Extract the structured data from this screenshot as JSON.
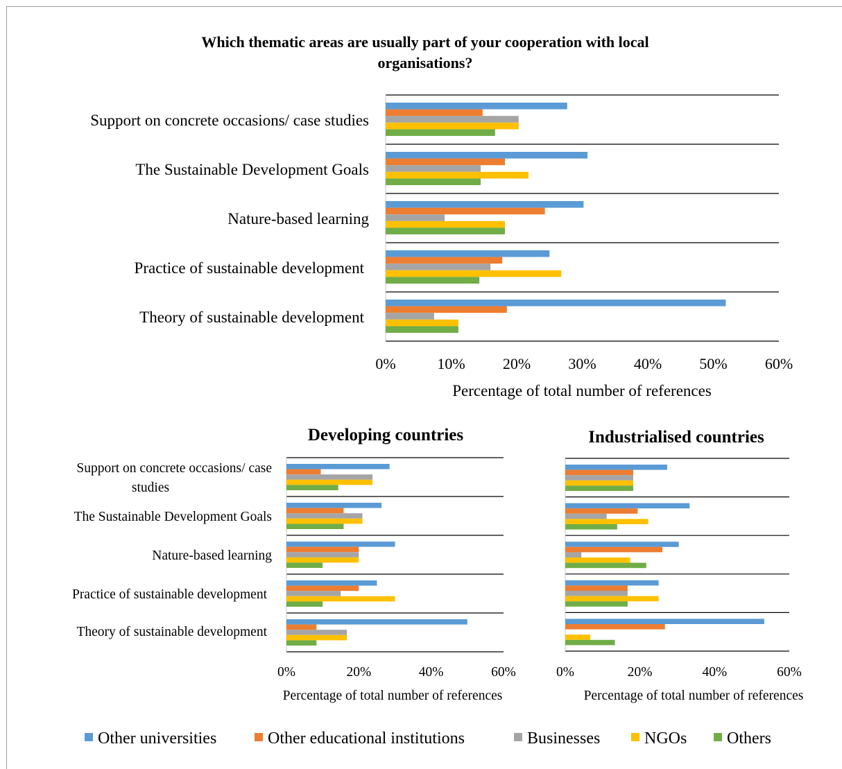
{
  "colors": {
    "other_universities": "#5B9BD5",
    "other_educational_institutions": "#ED7D31",
    "businesses": "#A5A5A5",
    "ngos": "#FFC000",
    "others": "#70AD47",
    "gridline": "#000000",
    "text": "#000000"
  },
  "legend": {
    "position": "bottom",
    "items": [
      {
        "key": "other_universities",
        "label": "Other universities"
      },
      {
        "key": "other_educational_institutions",
        "label": "Other educational institutions"
      },
      {
        "key": "businesses",
        "label": "Businesses"
      },
      {
        "key": "ngos",
        "label": "NGOs"
      },
      {
        "key": "others",
        "label": "Others"
      }
    ]
  },
  "chart_data": [
    {
      "type": "bar",
      "orientation": "horizontal",
      "title": "Which thematic areas are usually part of your cooperation with local organisations?",
      "xlabel": "Percentage of total number of references",
      "xlim": [
        0,
        60
      ],
      "xticks": [
        "0%",
        "10%",
        "20%",
        "30%",
        "40%",
        "50%",
        "60%"
      ],
      "categories": [
        "Support on concrete occasions/ case studies",
        "The Sustainable Development Goals",
        "Nature-based learning",
        "Practice of sustainable development",
        "Theory of sustainable development"
      ],
      "series": [
        {
          "name": "Other universities",
          "values": [
            27.7,
            30.8,
            30.2,
            25.0,
            51.9
          ]
        },
        {
          "name": "Other educational institutions",
          "values": [
            14.8,
            18.2,
            24.3,
            17.8,
            18.5
          ]
        },
        {
          "name": "Businesses",
          "values": [
            20.3,
            14.5,
            9.0,
            16.0,
            7.4
          ]
        },
        {
          "name": "NGOs",
          "values": [
            20.3,
            21.8,
            18.2,
            26.8,
            11.1
          ]
        },
        {
          "name": "Others",
          "values": [
            16.7,
            14.5,
            18.2,
            14.3,
            11.1
          ]
        }
      ]
    },
    {
      "type": "bar",
      "orientation": "horizontal",
      "title": "Developing countries",
      "xlabel": "Percentage of total number of references",
      "xlim": [
        0,
        60
      ],
      "xticks": [
        "0%",
        "20%",
        "40%",
        "60%"
      ],
      "categories": [
        "Support on concrete occasions/ case studies",
        "The Sustainable Development Goals",
        "Nature-based learning",
        "Practice of sustainable development",
        "Theory of sustainable development"
      ],
      "series": [
        {
          "name": "Other universities",
          "values": [
            28.5,
            26.3,
            30.0,
            25.0,
            50.0
          ]
        },
        {
          "name": "Other educational institutions",
          "values": [
            9.5,
            15.8,
            20.0,
            20.0,
            8.3
          ]
        },
        {
          "name": "Businesses",
          "values": [
            23.8,
            21.0,
            20.0,
            15.0,
            16.7
          ]
        },
        {
          "name": "NGOs",
          "values": [
            23.8,
            21.0,
            20.0,
            30.0,
            16.7
          ]
        },
        {
          "name": "Others",
          "values": [
            14.3,
            15.8,
            10.0,
            10.0,
            8.3
          ]
        }
      ]
    },
    {
      "type": "bar",
      "orientation": "horizontal",
      "title": "Industrialised countries",
      "xlabel": "Percentage of total number of references",
      "xlim": [
        0,
        60
      ],
      "xticks": [
        "0%",
        "20%",
        "40%",
        "60%"
      ],
      "categories": [
        "Support on concrete occasions/ case studies",
        "The Sustainable Development Goals",
        "Nature-based learning",
        "Practice of sustainable development",
        "Theory of sustainable development"
      ],
      "series": [
        {
          "name": "Other universities",
          "values": [
            27.3,
            33.3,
            30.4,
            25.0,
            53.3
          ]
        },
        {
          "name": "Other educational institutions",
          "values": [
            18.2,
            19.4,
            26.0,
            16.7,
            26.7
          ]
        },
        {
          "name": "Businesses",
          "values": [
            18.2,
            11.1,
            4.3,
            16.7,
            0
          ]
        },
        {
          "name": "NGOs",
          "values": [
            18.2,
            22.2,
            17.4,
            25.0,
            6.7
          ]
        },
        {
          "name": "Others",
          "values": [
            18.2,
            13.9,
            21.7,
            16.7,
            13.3
          ]
        }
      ]
    }
  ]
}
